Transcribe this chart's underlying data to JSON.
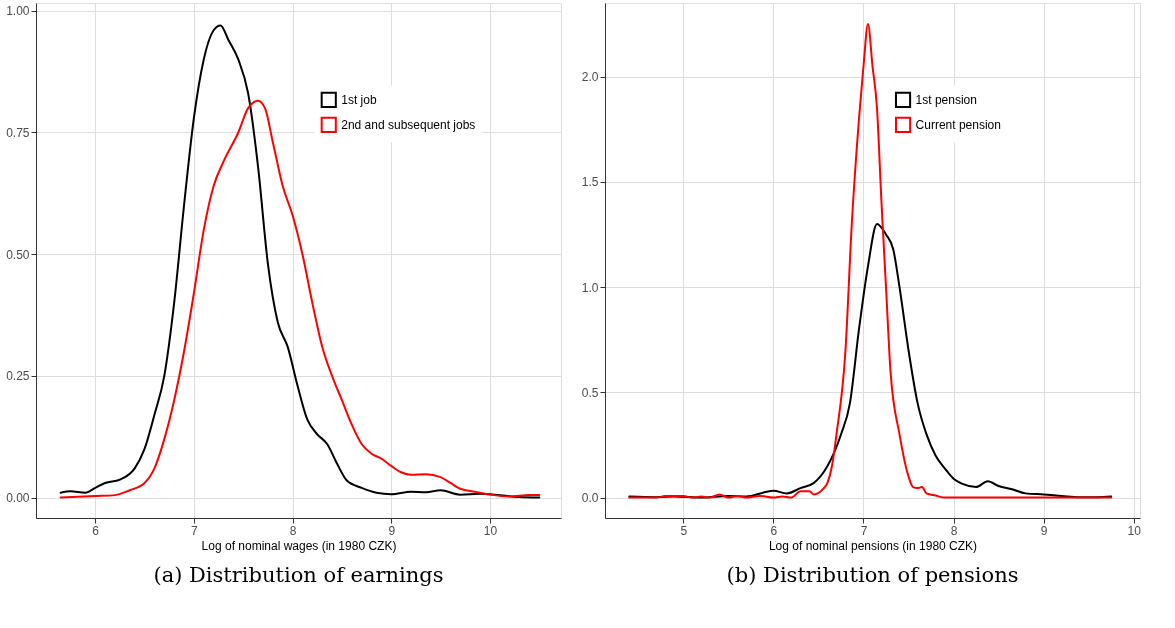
{
  "chart_data": [
    {
      "type": "line",
      "title": "(a) Distribution of earnings",
      "xlabel": "Log of nominal wages (in 1980 CZK)",
      "xlim": [
        5.4,
        10.72
      ],
      "ylim": [
        -0.042,
        1.016
      ],
      "xticks": [
        6,
        7,
        8,
        9,
        10
      ],
      "yticks": [
        {
          "value": 0,
          "label": "0.00"
        },
        {
          "value": 0.25,
          "label": "0.25"
        },
        {
          "value": 0.5,
          "label": "0.50"
        },
        {
          "value": 0.75,
          "label": "0.75"
        },
        {
          "value": 1,
          "label": "1.00"
        }
      ],
      "grid": true,
      "legend": "top right",
      "line_style": "solid",
      "marker": "none",
      "series": [
        {
          "name": "1st job",
          "color": "#000000",
          "x": [
            5.65,
            5.75,
            5.9,
            6.0,
            6.1,
            6.25,
            6.4,
            6.5,
            6.6,
            6.7,
            6.8,
            6.9,
            7.0,
            7.1,
            7.2,
            7.27,
            7.35,
            7.45,
            7.55,
            7.65,
            7.75,
            7.85,
            7.95,
            8.05,
            8.15,
            8.25,
            8.35,
            8.45,
            8.55,
            8.7,
            8.85,
            9.0,
            9.2,
            9.35,
            9.5,
            9.7,
            9.9,
            10.1,
            10.3,
            10.5
          ],
          "values": [
            0.01,
            0.013,
            0.01,
            0.02,
            0.03,
            0.037,
            0.06,
            0.1,
            0.17,
            0.25,
            0.4,
            0.6,
            0.78,
            0.9,
            0.96,
            0.97,
            0.94,
            0.9,
            0.83,
            0.68,
            0.48,
            0.36,
            0.31,
            0.23,
            0.16,
            0.13,
            0.11,
            0.07,
            0.035,
            0.02,
            0.01,
            0.007,
            0.012,
            0.011,
            0.015,
            0.006,
            0.008,
            0.005,
            0.001,
            0.0
          ]
        },
        {
          "name": "2nd and subsequent jobs",
          "color": "#ff0000",
          "x": [
            5.65,
            6.0,
            6.2,
            6.35,
            6.5,
            6.6,
            6.7,
            6.8,
            6.9,
            7.0,
            7.1,
            7.2,
            7.3,
            7.45,
            7.55,
            7.65,
            7.72,
            7.8,
            7.9,
            8.0,
            8.1,
            8.2,
            8.3,
            8.4,
            8.5,
            8.6,
            8.7,
            8.8,
            8.9,
            9.0,
            9.1,
            9.2,
            9.35,
            9.5,
            9.6,
            9.7,
            9.85,
            10.0,
            10.2,
            10.4,
            10.5
          ],
          "values": [
            0.0,
            0.003,
            0.005,
            0.015,
            0.03,
            0.06,
            0.12,
            0.2,
            0.3,
            0.42,
            0.55,
            0.64,
            0.69,
            0.75,
            0.8,
            0.815,
            0.8,
            0.73,
            0.64,
            0.58,
            0.5,
            0.4,
            0.31,
            0.25,
            0.2,
            0.15,
            0.11,
            0.09,
            0.08,
            0.065,
            0.052,
            0.047,
            0.048,
            0.042,
            0.03,
            0.018,
            0.012,
            0.006,
            0.002,
            0.005,
            0.005
          ]
        }
      ]
    },
    {
      "type": "line",
      "title": "(b) Distribution of pensions",
      "xlabel": "Log of nominal pensions (in 1980 CZK)",
      "xlim": [
        4.13,
        10.07
      ],
      "ylim": [
        -0.097,
        2.35
      ],
      "xticks": [
        5,
        6,
        7,
        8,
        9,
        10
      ],
      "yticks": [
        {
          "value": 0,
          "label": "0.0"
        },
        0.5,
        {
          "value": 1,
          "label": "1.0"
        },
        1.5,
        {
          "value": 2,
          "label": "2.0"
        }
      ],
      "grid": true,
      "legend": "top right",
      "line_style": "solid",
      "marker": "none",
      "series": [
        {
          "name": "1st pension",
          "color": "#000000",
          "x": [
            4.4,
            4.7,
            4.9,
            5.2,
            5.5,
            5.7,
            5.9,
            6.0,
            6.15,
            6.3,
            6.45,
            6.6,
            6.75,
            6.85,
            6.95,
            7.05,
            7.15,
            7.25,
            7.33,
            7.4,
            7.5,
            7.6,
            7.7,
            7.8,
            7.9,
            8.0,
            8.1,
            8.25,
            8.38,
            8.5,
            8.65,
            8.8,
            9.0,
            9.2,
            9.4,
            9.6,
            9.75
          ],
          "values": [
            0.005,
            0.002,
            0.005,
            0.0,
            0.008,
            0.005,
            0.025,
            0.032,
            0.02,
            0.045,
            0.07,
            0.15,
            0.3,
            0.45,
            0.8,
            1.1,
            1.3,
            1.25,
            1.18,
            1.0,
            0.7,
            0.45,
            0.3,
            0.2,
            0.14,
            0.09,
            0.065,
            0.05,
            0.078,
            0.055,
            0.04,
            0.02,
            0.015,
            0.008,
            0.002,
            0.002,
            0.005
          ]
        },
        {
          "name": "Current pension",
          "color": "#ff0000",
          "x": [
            4.4,
            4.7,
            4.8,
            5.0,
            5.1,
            5.2,
            5.3,
            5.4,
            5.5,
            5.6,
            5.7,
            5.85,
            6.0,
            6.1,
            6.2,
            6.3,
            6.4,
            6.45,
            6.55,
            6.6,
            6.65,
            6.7,
            6.8,
            6.87,
            6.95,
            7.0,
            7.05,
            7.1,
            7.15,
            7.2,
            7.25,
            7.3,
            7.4,
            7.5,
            7.55,
            7.6,
            7.65,
            7.7,
            7.8,
            7.9,
            9.75
          ],
          "values": [
            0.0,
            0.0,
            0.007,
            0.007,
            0.0,
            0.005,
            0.0,
            0.015,
            0.0,
            0.008,
            0.0,
            0.008,
            0.0,
            0.005,
            0.0,
            0.03,
            0.03,
            0.015,
            0.04,
            0.07,
            0.15,
            0.3,
            0.7,
            1.3,
            1.8,
            2.05,
            2.25,
            2.05,
            1.85,
            1.4,
            1.0,
            0.6,
            0.3,
            0.1,
            0.05,
            0.045,
            0.05,
            0.02,
            0.01,
            0.0,
            0.0
          ]
        }
      ]
    }
  ]
}
